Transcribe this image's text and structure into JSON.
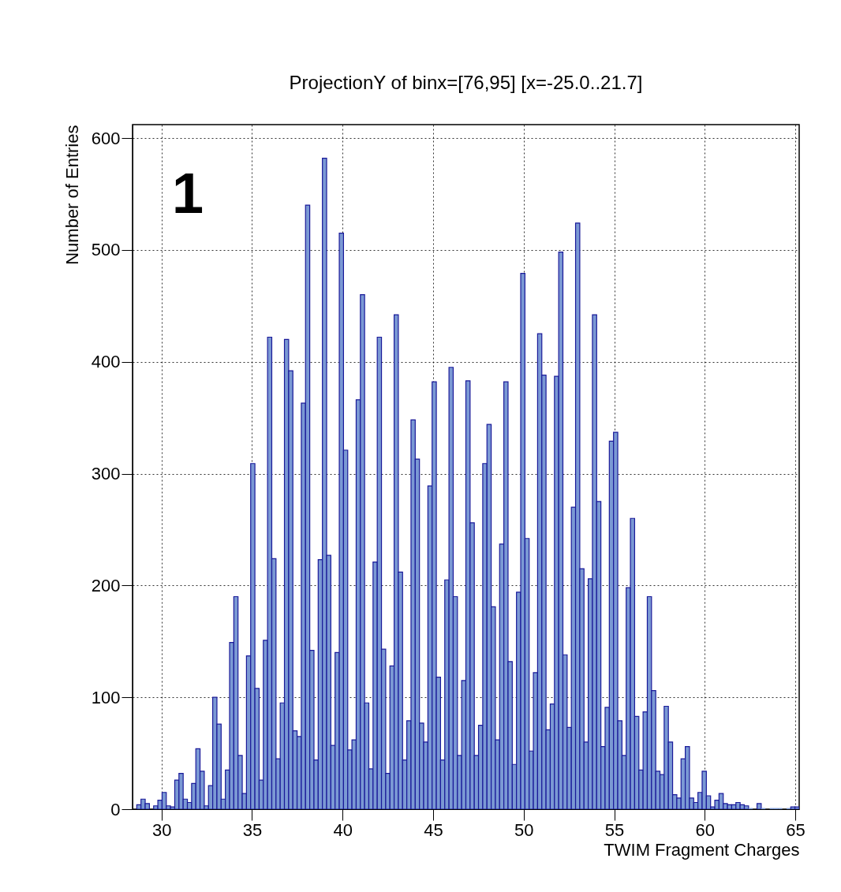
{
  "chart_data": {
    "type": "histogram",
    "title": "ProjectionY of binx=[76,95] [x=-25.0..21.7]",
    "xlabel": "TWIM Fragment Charges",
    "ylabel": "Number of Entries",
    "annotations": [
      "1"
    ],
    "color": "#7b99d4",
    "bins": [
      28.4,
      28.633,
      28.866,
      29.099,
      29.332,
      29.565,
      29.798,
      30.031,
      30.264,
      30.497,
      30.73,
      30.963,
      31.196,
      31.429,
      31.662,
      31.895,
      32.128,
      32.361,
      32.594,
      32.827,
      33.06,
      33.293,
      33.526,
      33.759,
      33.992,
      34.225,
      34.458,
      34.691,
      34.924,
      35.157,
      35.39,
      35.623,
      35.856,
      36.089,
      36.322,
      36.555,
      36.788,
      37.021,
      37.254,
      37.487,
      37.72,
      37.953,
      38.186,
      38.419,
      38.652,
      38.885,
      39.118,
      39.351,
      39.584,
      39.817,
      40.05,
      40.283,
      40.516,
      40.749,
      40.982,
      41.215,
      41.448,
      41.681,
      41.914,
      42.147,
      42.38,
      42.613,
      42.846,
      43.079,
      43.312,
      43.545,
      43.778,
      44.011,
      44.244,
      44.477,
      44.71,
      44.943,
      45.176,
      45.409,
      45.642,
      45.875,
      46.108,
      46.341,
      46.574,
      46.807,
      47.04,
      47.273,
      47.506,
      47.739,
      47.972,
      48.205,
      48.438,
      48.671,
      48.904,
      49.137,
      49.37,
      49.603,
      49.836,
      50.069,
      50.302,
      50.535,
      50.768,
      51.001,
      51.234,
      51.467,
      51.7,
      51.933,
      52.166,
      52.399,
      52.632,
      52.865,
      53.098,
      53.331,
      53.564,
      53.797,
      54.03,
      54.263,
      54.496,
      54.729,
      54.962,
      55.195,
      55.428,
      55.661,
      55.894,
      56.127,
      56.36,
      56.593,
      56.826,
      57.059,
      57.292,
      57.525,
      57.758,
      57.991,
      58.224,
      58.457,
      58.69,
      58.923,
      59.156,
      59.389,
      59.622,
      59.855,
      60.088,
      60.321,
      60.554,
      60.787,
      61.02,
      61.253,
      61.486,
      61.719,
      61.952,
      62.185,
      62.418,
      62.651,
      62.884,
      63.117,
      63.35,
      63.583,
      63.816,
      64.049,
      64.282,
      64.515,
      64.748,
      64.981,
      65.214
    ],
    "values": [
      0,
      4,
      9,
      5,
      0,
      3,
      8,
      15,
      3,
      2,
      26,
      32,
      9,
      6,
      23,
      54,
      34,
      3,
      21,
      100,
      76,
      9,
      35,
      149,
      190,
      48,
      14,
      137,
      309,
      108,
      26,
      151,
      422,
      224,
      45,
      95,
      420,
      392,
      70,
      65,
      363,
      540,
      142,
      44,
      223,
      582,
      227,
      57,
      140,
      515,
      321,
      53,
      62,
      366,
      460,
      95,
      36,
      221,
      422,
      143,
      32,
      128,
      442,
      212,
      44,
      79,
      348,
      313,
      77,
      60,
      289,
      382,
      118,
      44,
      205,
      395,
      190,
      48,
      115,
      383,
      256,
      48,
      75,
      309,
      344,
      181,
      62,
      237,
      382,
      132,
      40,
      194,
      479,
      242,
      52,
      122,
      425,
      388,
      71,
      94,
      387,
      498,
      138,
      73,
      270,
      524,
      215,
      60,
      206,
      442,
      275,
      56,
      91,
      329,
      337,
      79,
      48,
      198,
      260,
      83,
      35,
      87,
      190,
      106,
      34,
      31,
      92,
      60,
      13,
      10,
      45,
      56,
      10,
      6,
      15,
      34,
      12,
      2,
      8,
      14,
      5,
      4,
      4,
      6,
      4,
      3,
      1,
      0,
      5,
      1,
      0,
      1,
      1,
      1,
      0,
      1,
      2,
      2
    ],
    "xlim": [
      28.4,
      65.214
    ],
    "ylim": [
      0,
      612
    ],
    "xticks": [
      30,
      35,
      40,
      45,
      50,
      55,
      60,
      65
    ],
    "yticks": [
      0,
      100,
      200,
      300,
      400,
      500,
      600
    ],
    "grid": true
  }
}
